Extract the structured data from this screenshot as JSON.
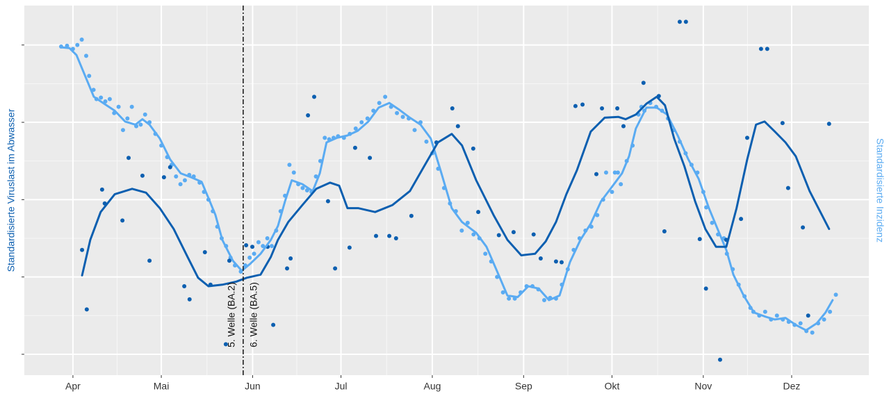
{
  "chart_data": {
    "type": "scatter",
    "ylabel": "Standardisierte Viruslast im Abwasser",
    "y2label": "Standardisierte Inzidenz",
    "xlim": [
      -16.5,
      270.2
    ],
    "ylim": [
      -0.27,
      4.51
    ],
    "xticks": [
      {
        "value": 0,
        "label": "Apr"
      },
      {
        "value": 30,
        "label": "Mai"
      },
      {
        "value": 61,
        "label": "Jun"
      },
      {
        "value": 91,
        "label": "Jul"
      },
      {
        "value": 122,
        "label": "Aug"
      },
      {
        "value": 153,
        "label": "Sep"
      },
      {
        "value": 183,
        "label": "Okt"
      },
      {
        "value": 214,
        "label": "Nov"
      },
      {
        "value": 244,
        "label": "Dez"
      }
    ],
    "yticks": [
      0,
      1,
      2,
      3,
      4
    ],
    "grid": true,
    "vline": {
      "x": 57.8,
      "labels": [
        "5. Welle (BA.2)",
        "6. Welle (BA.5)"
      ]
    },
    "series": [
      {
        "style": "points",
        "color": "#5aabf2",
        "x": [
          -4,
          -2,
          0,
          1.5,
          3,
          4.5,
          5.5,
          7,
          8,
          9.5,
          11,
          12.5,
          14,
          15.5,
          17,
          18.5,
          20,
          21.5,
          23,
          24.5,
          26,
          28,
          30,
          32,
          33.5,
          35,
          36.5,
          38,
          39.5,
          41,
          43,
          44.5,
          46,
          47.5,
          49,
          50.5,
          52,
          53.5,
          55,
          57,
          58.5,
          60,
          61.5,
          63,
          64.5,
          66,
          67.5,
          69,
          70.5,
          72,
          73.5,
          75,
          76.5,
          78,
          79.5,
          81,
          82.5,
          84,
          85.5,
          87,
          88.5,
          90,
          92,
          94,
          96,
          98,
          100,
          102,
          104,
          106,
          108,
          110,
          112,
          114,
          116,
          118,
          120,
          122,
          124,
          126,
          128,
          130,
          132,
          134,
          136,
          138,
          140,
          142,
          144,
          146,
          148,
          150,
          152,
          154,
          156,
          158,
          160,
          162,
          164,
          166,
          168,
          170,
          172,
          174,
          176,
          178,
          180,
          181,
          183,
          184,
          185,
          186,
          188,
          190,
          192,
          193,
          194,
          196,
          198,
          200,
          202,
          204,
          206,
          208,
          210,
          212,
          214,
          215,
          217,
          219,
          221,
          222,
          224,
          226,
          228,
          230,
          231,
          233,
          235,
          237,
          239,
          241,
          243,
          245,
          247,
          249,
          251,
          253,
          255,
          257,
          259
        ],
        "values": [
          3.98,
          3.99,
          3.95,
          4.0,
          4.07,
          3.86,
          3.6,
          3.42,
          3.3,
          3.32,
          3.27,
          3.3,
          3.12,
          3.2,
          2.9,
          3.05,
          3.2,
          2.95,
          2.97,
          3.1,
          3.0,
          2.85,
          2.7,
          2.55,
          2.45,
          2.3,
          2.2,
          2.25,
          2.32,
          2.3,
          2.22,
          2.1,
          2.0,
          1.85,
          1.65,
          1.5,
          1.4,
          1.25,
          1.15,
          1.07,
          1.15,
          1.25,
          1.3,
          1.45,
          1.4,
          1.5,
          1.4,
          1.6,
          1.85,
          2.05,
          2.45,
          2.35,
          2.2,
          2.15,
          2.12,
          2.1,
          2.3,
          2.5,
          2.8,
          2.78,
          2.8,
          2.82,
          2.8,
          2.85,
          2.92,
          3.0,
          3.05,
          3.15,
          3.25,
          3.33,
          3.2,
          3.12,
          3.07,
          3.05,
          2.9,
          3.0,
          2.75,
          2.6,
          2.4,
          2.15,
          1.95,
          1.85,
          1.6,
          1.7,
          1.55,
          1.5,
          1.3,
          1.2,
          1.0,
          0.8,
          0.72,
          0.72,
          0.8,
          0.88,
          0.88,
          0.84,
          0.7,
          0.73,
          0.72,
          0.9,
          1.1,
          1.35,
          1.5,
          1.6,
          1.65,
          1.8,
          2.0,
          2.35,
          2.1,
          2.35,
          2.35,
          2.2,
          2.5,
          2.7,
          3.1,
          3.2,
          3.15,
          3.25,
          3.2,
          3.15,
          3.05,
          2.9,
          2.75,
          2.6,
          2.45,
          2.35,
          2.1,
          1.9,
          1.7,
          1.55,
          1.5,
          1.3,
          1.1,
          0.9,
          0.75,
          0.6,
          0.55,
          0.5,
          0.55,
          0.45,
          0.5,
          0.45,
          0.42,
          0.38,
          0.4,
          0.3,
          0.28,
          0.4,
          0.45,
          0.55,
          0.77
        ]
      },
      {
        "style": "points",
        "color": "#0c5fb0",
        "x": [
          3.1,
          4.7,
          9.9,
          10.8,
          16.8,
          18.9,
          23.6,
          26.0,
          30.9,
          33.0,
          37.8,
          39.6,
          44.8,
          46.7,
          51.9,
          53.1,
          58.8,
          60.9,
          66.1,
          68.0,
          72.7,
          73.9,
          79.8,
          81.9,
          86.6,
          89.0,
          93.9,
          95.8,
          100.8,
          102.9,
          107.4,
          109.7,
          114.9,
          123.4,
          128.8,
          130.7,
          135.9,
          137.6,
          144.6,
          149.6,
          156.4,
          158.8,
          164.0,
          165.9,
          170.6,
          173.0,
          177.7,
          179.6,
          184.8,
          186.9,
          193.7,
          198.9,
          200.8,
          206.0,
          208.1,
          212.8,
          214.9,
          219.7,
          221.8,
          226.8,
          228.9,
          233.6,
          235.7,
          240.9,
          242.8,
          247.8,
          249.6,
          256.7
        ],
        "values": [
          1.35,
          0.58,
          2.13,
          1.95,
          1.73,
          2.54,
          2.31,
          1.21,
          2.29,
          2.42,
          0.88,
          0.71,
          1.32,
          0.9,
          0.13,
          1.21,
          1.41,
          1.39,
          1.39,
          0.38,
          1.11,
          1.24,
          3.09,
          3.33,
          1.98,
          1.11,
          1.38,
          2.67,
          2.54,
          1.53,
          1.53,
          1.5,
          1.79,
          2.74,
          3.18,
          2.95,
          2.66,
          1.84,
          1.54,
          1.58,
          1.55,
          1.24,
          1.2,
          1.19,
          3.21,
          3.23,
          2.33,
          3.18,
          3.18,
          2.95,
          3.51,
          3.34,
          1.59,
          4.3,
          4.3,
          1.49,
          0.85,
          -0.07,
          1.48,
          1.75,
          2.8,
          3.95,
          3.95,
          2.99,
          2.15,
          1.64,
          0.5,
          2.98
        ]
      },
      {
        "style": "line",
        "color": "#5aabf2",
        "x": [
          -4.0,
          -1.2,
          1.2,
          4.7,
          7.1,
          10.6,
          14.2,
          17.7,
          21.2,
          23.6,
          26.0,
          29.5,
          33.0,
          36.6,
          40.1,
          43.7,
          46.0,
          48.4,
          50.7,
          54.3,
          57.3,
          60.2,
          63.7,
          67.2,
          69.6,
          72.0,
          74.3,
          77.9,
          81.4,
          83.8,
          86.1,
          89.7,
          93.2,
          96.7,
          100.3,
          103.8,
          107.4,
          110.9,
          114.4,
          118.0,
          121.5,
          125.1,
          128.6,
          132.1,
          136.9,
          140.4,
          143.9,
          147.5,
          151.0,
          154.6,
          158.1,
          161.6,
          165.2,
          168.7,
          172.3,
          175.8,
          179.3,
          182.9,
          186.4,
          188.8,
          191.1,
          194.7,
          198.2,
          201.7,
          205.3,
          208.8,
          212.4,
          215.9,
          219.4,
          221.8,
          224.2,
          227.7,
          231.2,
          234.8,
          238.3,
          241.9,
          245.4,
          248.9,
          252.5,
          255.5,
          257.9
        ],
        "values": [
          3.97,
          3.96,
          3.87,
          3.55,
          3.33,
          3.24,
          3.15,
          3.01,
          2.97,
          3.04,
          2.97,
          2.79,
          2.52,
          2.34,
          2.29,
          2.23,
          2.02,
          1.8,
          1.48,
          1.21,
          1.08,
          1.17,
          1.3,
          1.48,
          1.66,
          1.98,
          2.25,
          2.2,
          2.11,
          2.34,
          2.74,
          2.8,
          2.83,
          2.89,
          3.01,
          3.19,
          3.25,
          3.16,
          3.06,
          2.97,
          2.79,
          2.34,
          1.89,
          1.71,
          1.57,
          1.39,
          1.08,
          0.76,
          0.74,
          0.88,
          0.85,
          0.7,
          0.76,
          1.19,
          1.48,
          1.69,
          1.98,
          2.16,
          2.34,
          2.56,
          2.92,
          3.19,
          3.19,
          3.1,
          2.83,
          2.53,
          2.27,
          1.89,
          1.57,
          1.35,
          1.03,
          0.76,
          0.54,
          0.49,
          0.45,
          0.47,
          0.38,
          0.31,
          0.4,
          0.54,
          0.7
        ]
      },
      {
        "style": "line",
        "color": "#0c5fb0",
        "x": [
          3.1,
          5.9,
          9.4,
          14.2,
          20.1,
          24.8,
          29.5,
          34.2,
          38.9,
          42.5,
          46.0,
          50.7,
          55.5,
          59.0,
          63.7,
          67.2,
          69.6,
          73.1,
          77.9,
          82.6,
          87.3,
          90.4,
          93.2,
          96.8,
          102.6,
          108.5,
          114.4,
          119.2,
          123.9,
          128.6,
          132.1,
          136.9,
          142.8,
          147.5,
          152.2,
          156.9,
          160.5,
          164.0,
          167.5,
          171.1,
          175.8,
          180.5,
          185.2,
          187.6,
          191.1,
          194.7,
          198.2,
          201.0,
          204.1,
          207.6,
          211.2,
          214.7,
          218.3,
          221.8,
          225.3,
          228.9,
          231.9,
          234.8,
          238.3,
          241.9,
          245.4,
          250.1,
          256.7
        ],
        "values": [
          1.02,
          1.48,
          1.84,
          2.07,
          2.14,
          2.09,
          1.89,
          1.62,
          1.26,
          0.99,
          0.88,
          0.9,
          0.94,
          0.99,
          1.03,
          1.26,
          1.48,
          1.71,
          1.93,
          2.14,
          2.22,
          2.18,
          1.89,
          1.89,
          1.84,
          1.93,
          2.11,
          2.43,
          2.74,
          2.85,
          2.7,
          2.25,
          1.8,
          1.48,
          1.28,
          1.3,
          1.46,
          1.71,
          2.07,
          2.38,
          2.88,
          3.06,
          3.07,
          3.04,
          3.1,
          3.24,
          3.33,
          3.22,
          2.79,
          2.43,
          1.98,
          1.62,
          1.39,
          1.39,
          1.89,
          2.52,
          2.97,
          3.01,
          2.88,
          2.74,
          2.56,
          2.11,
          1.62
        ]
      }
    ]
  }
}
